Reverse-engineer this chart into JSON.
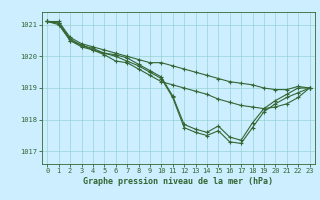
{
  "title": "Graphe pression niveau de la mer (hPa)",
  "xlabel_hours": [
    0,
    1,
    2,
    3,
    4,
    5,
    6,
    7,
    8,
    9,
    10,
    11,
    12,
    13,
    14,
    15,
    16,
    17,
    18,
    19,
    20,
    21,
    22,
    23
  ],
  "ylim": [
    1016.6,
    1021.4
  ],
  "yticks": [
    1017,
    1018,
    1019,
    1020,
    1021
  ],
  "bg_color": "#cceeff",
  "grid_color": "#88cccc",
  "line_color": "#336633",
  "lines": [
    [
      1021.1,
      1021.1,
      1020.6,
      1020.4,
      1020.3,
      1020.2,
      1020.1,
      1020.0,
      1019.9,
      1019.8,
      1019.8,
      1019.7,
      1019.6,
      1019.5,
      1019.4,
      1019.3,
      1019.2,
      1019.15,
      1019.1,
      1019.0,
      1018.95,
      1018.95,
      1019.05,
      1019.0
    ],
    [
      1021.1,
      1021.0,
      1020.5,
      1020.35,
      1020.25,
      1020.1,
      1020.0,
      1019.85,
      1019.7,
      1019.5,
      1019.3,
      1018.7,
      1017.75,
      1017.6,
      1017.5,
      1017.65,
      1017.3,
      1017.25,
      1017.75,
      1018.25,
      1018.5,
      1018.7,
      1018.85,
      1019.0
    ],
    [
      1021.1,
      1021.05,
      1020.55,
      1020.35,
      1020.2,
      1020.1,
      1020.05,
      1019.95,
      1019.75,
      1019.55,
      1019.35,
      1018.75,
      1017.85,
      1017.7,
      1017.6,
      1017.8,
      1017.45,
      1017.35,
      1017.9,
      1018.35,
      1018.6,
      1018.8,
      1019.0,
      1019.0
    ],
    [
      1021.1,
      1021.05,
      1020.5,
      1020.3,
      1020.2,
      1020.05,
      1019.85,
      1019.8,
      1019.6,
      1019.4,
      1019.2,
      1019.1,
      1019.0,
      1018.9,
      1018.8,
      1018.65,
      1018.55,
      1018.45,
      1018.4,
      1018.35,
      1018.4,
      1018.5,
      1018.7,
      1019.0
    ]
  ],
  "marker": "+",
  "marker_size": 3,
  "line_width": 0.8,
  "tick_fontsize": 5.0,
  "label_fontsize": 6.0
}
